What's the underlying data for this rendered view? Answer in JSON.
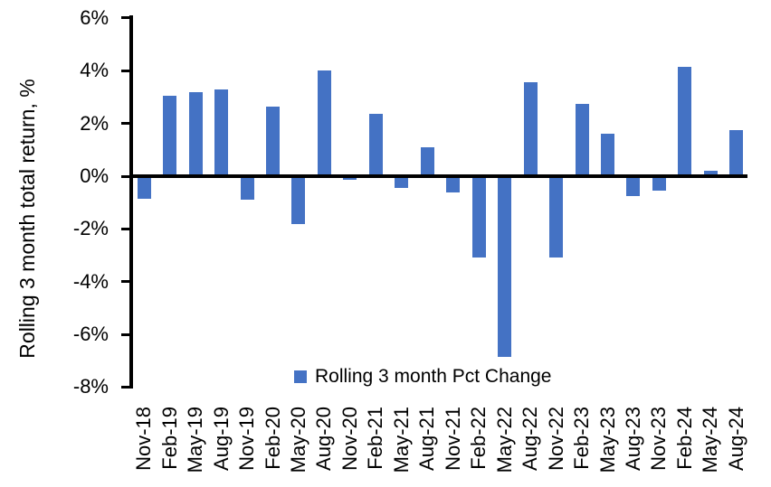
{
  "chart_data": {
    "type": "bar",
    "title": "",
    "xlabel": "",
    "ylabel": "Rolling 3 month total return, %",
    "legend": [
      "Rolling 3 month Pct Change"
    ],
    "legend_position": "bottom-center-inside",
    "grid": false,
    "bar_color": "#4472C4",
    "axis_color": "#000000",
    "ylim": [
      -8,
      6
    ],
    "ytick_values": [
      6,
      4,
      2,
      0,
      -2,
      -4,
      -6,
      -8
    ],
    "ytick_labels": [
      "6%",
      "4%",
      "2%",
      "0%",
      "-2%",
      "-4%",
      "-6%",
      "-8%"
    ],
    "categories": [
      "Nov-18",
      "Feb-19",
      "May-19",
      "Aug-19",
      "Nov-19",
      "Feb-20",
      "May-20",
      "Aug-20",
      "Nov-20",
      "Feb-21",
      "May-21",
      "Aug-21",
      "Nov-21",
      "Feb-22",
      "May-22",
      "Aug-22",
      "Nov-22",
      "Feb-23",
      "May-23",
      "Aug-23",
      "Nov-23",
      "Feb-24",
      "May-24",
      "Aug-24"
    ],
    "values": [
      -0.85,
      3.05,
      3.2,
      3.3,
      -0.9,
      2.65,
      -1.8,
      4.0,
      -0.15,
      2.35,
      -0.45,
      1.1,
      -0.6,
      -3.1,
      -6.85,
      3.55,
      -3.1,
      2.75,
      1.6,
      -0.75,
      -0.55,
      4.15,
      0.2,
      1.75
    ]
  }
}
